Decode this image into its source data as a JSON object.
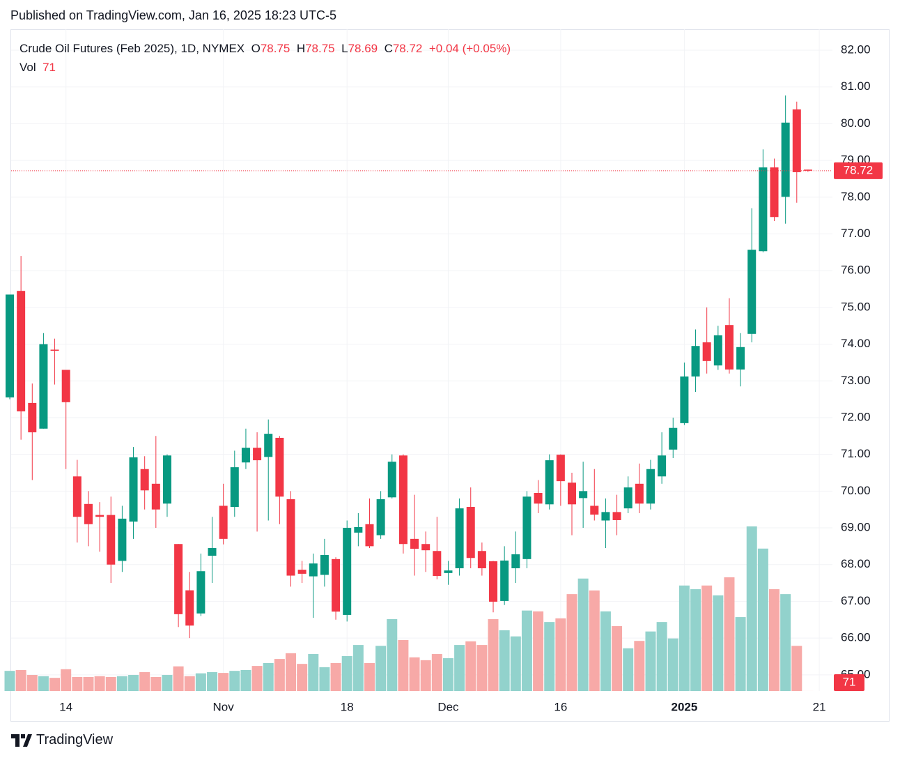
{
  "header": {
    "published": "Published on TradingView.com, Jan 16, 2025 18:23 UTC-5"
  },
  "chart_data": {
    "type": "candlestick",
    "title": "Crude Oil Futures (Feb 2025), 1D, NYMEX",
    "ohlc_labels": [
      "O",
      "H",
      "L",
      "C"
    ],
    "change": {
      "value": 0.04,
      "label": "+0.04"
    },
    "change_pct": {
      "value": 0.05,
      "label": "(+0.05%)"
    },
    "volume_label": "Vol",
    "categories": [
      null,
      null,
      null,
      null,
      null,
      "14",
      null,
      null,
      null,
      null,
      null,
      null,
      null,
      null,
      null,
      null,
      null,
      null,
      null,
      "Nov",
      null,
      null,
      null,
      null,
      null,
      null,
      null,
      null,
      null,
      null,
      "18",
      null,
      null,
      null,
      null,
      null,
      null,
      null,
      null,
      "Dec",
      null,
      null,
      null,
      null,
      null,
      null,
      null,
      null,
      null,
      "16",
      null,
      null,
      null,
      null,
      null,
      null,
      null,
      null,
      null,
      null,
      "2025",
      null,
      null,
      null,
      null,
      null,
      null,
      null,
      null,
      null,
      null,
      null,
      "21"
    ],
    "open": [
      72.55,
      75.45,
      72.4,
      71.7,
      73.85,
      73.3,
      70.4,
      69.65,
      69.35,
      69.35,
      68.1,
      69.17,
      70.6,
      70.2,
      69.66,
      68.56,
      67.3,
      66.67,
      68.24,
      69.6,
      69.57,
      70.78,
      71.18,
      70.93,
      71.45,
      69.78,
      67.86,
      67.68,
      67.72,
      68.15,
      66.63,
      68.87,
      69.1,
      68.8,
      69.83,
      70.97,
      68.7,
      68.56,
      68.37,
      67.77,
      67.9,
      69.57,
      68.37,
      68.09,
      67.01,
      67.9,
      68.15,
      69.95,
      69.64,
      70.99,
      70.23,
      69.81,
      69.6,
      69.2,
      69.43,
      69.53,
      70.2,
      69.66,
      70.4,
      71.13,
      71.85,
      73.12,
      74.05,
      73.42,
      74.52,
      73.31,
      74.28,
      76.53,
      78.81,
      78.01,
      80.39,
      78.75,
      null
    ],
    "high": [
      75.35,
      76.4,
      72.93,
      74.3,
      74.15,
      73.3,
      70.85,
      70.0,
      69.7,
      69.85,
      69.6,
      71.2,
      70.95,
      71.5,
      71.0,
      68.56,
      67.8,
      68.3,
      69.3,
      70.2,
      71.1,
      71.7,
      71.6,
      71.95,
      71.5,
      70.0,
      68.1,
      68.3,
      68.7,
      68.2,
      69.2,
      69.4,
      69.8,
      70.0,
      71.0,
      71.0,
      69.9,
      68.9,
      69.3,
      68.1,
      69.8,
      70.1,
      68.6,
      68.1,
      68.5,
      68.9,
      70.0,
      70.3,
      71.0,
      71.0,
      70.5,
      70.8,
      70.6,
      69.8,
      69.9,
      70.4,
      70.75,
      70.85,
      71.6,
      72.0,
      73.5,
      74.4,
      75.0,
      74.5,
      75.25,
      74.3,
      77.7,
      79.3,
      79.05,
      80.77,
      80.6,
      78.75,
      null
    ],
    "low": [
      72.5,
      71.4,
      70.3,
      71.7,
      72.9,
      70.6,
      68.6,
      68.5,
      68.35,
      67.5,
      67.8,
      68.7,
      69.5,
      69.0,
      69.3,
      66.3,
      66.0,
      66.6,
      67.5,
      68.55,
      69.3,
      70.6,
      68.9,
      69.2,
      69.1,
      67.4,
      67.5,
      66.55,
      67.4,
      66.5,
      66.45,
      68.5,
      68.45,
      68.7,
      69.8,
      68.3,
      67.7,
      67.8,
      67.6,
      67.45,
      67.7,
      67.9,
      67.7,
      66.7,
      66.9,
      67.5,
      67.9,
      69.4,
      69.5,
      69.6,
      68.8,
      69.0,
      69.2,
      68.45,
      68.8,
      69.4,
      69.4,
      69.5,
      70.2,
      70.9,
      71.8,
      72.7,
      73.2,
      73.3,
      73.2,
      72.85,
      74.05,
      76.5,
      77.35,
      77.28,
      77.85,
      78.69,
      null
    ],
    "close": [
      75.35,
      72.17,
      71.6,
      74.0,
      73.82,
      72.42,
      69.3,
      69.1,
      69.3,
      68.0,
      69.25,
      70.92,
      70.02,
      69.5,
      70.97,
      66.65,
      66.34,
      67.82,
      68.45,
      68.7,
      70.65,
      71.18,
      70.84,
      71.56,
      69.85,
      67.7,
      67.75,
      68.03,
      68.26,
      66.72,
      69.0,
      69.02,
      68.5,
      69.78,
      70.8,
      68.56,
      68.43,
      68.39,
      67.69,
      67.84,
      69.53,
      68.18,
      67.9,
      66.99,
      68.11,
      68.28,
      69.85,
      69.66,
      70.84,
      70.27,
      69.64,
      70.0,
      69.36,
      69.43,
      69.21,
      70.1,
      69.66,
      70.6,
      70.97,
      71.72,
      73.12,
      73.95,
      73.54,
      74.24,
      73.31,
      73.92,
      76.57,
      78.81,
      77.46,
      80.03,
      78.68,
      78.72,
      null
    ],
    "volume": [
      49000,
      51000,
      39000,
      36000,
      32000,
      53000,
      34000,
      34000,
      36000,
      34000,
      36000,
      39000,
      46000,
      34000,
      39000,
      60000,
      36000,
      43000,
      46000,
      44000,
      49000,
      51000,
      61000,
      68000,
      78000,
      92000,
      66000,
      90000,
      58000,
      68000,
      85000,
      112000,
      68000,
      110000,
      175000,
      124000,
      82000,
      75000,
      90000,
      80000,
      112000,
      121000,
      112000,
      175000,
      148000,
      133000,
      196000,
      194000,
      168000,
      177000,
      236000,
      274000,
      245000,
      194000,
      158000,
      104000,
      122000,
      145000,
      168000,
      128000,
      257000,
      248000,
      257000,
      233000,
      277000,
      180000,
      401000,
      347000,
      248000,
      236000,
      110000,
      71,
      null
    ],
    "up_color": "#089981",
    "down_color": "#f23645",
    "volume_up_color": "#92d2cc",
    "volume_down_color": "#f7a9a7",
    "ylim": [
      64.56,
      82.57
    ],
    "yticks": [
      {
        "value": 65,
        "label": "65.00"
      },
      {
        "value": 66,
        "label": "66.00"
      },
      {
        "value": 67,
        "label": "67.00"
      },
      {
        "value": 68,
        "label": "68.00"
      },
      {
        "value": 69,
        "label": "69.00"
      },
      {
        "value": 70,
        "label": "70.00"
      },
      {
        "value": 71,
        "label": "71.00"
      },
      {
        "value": 72,
        "label": "72.00"
      },
      {
        "value": 73,
        "label": "73.00"
      },
      {
        "value": 74,
        "label": "74.00"
      },
      {
        "value": 75,
        "label": "75.00"
      },
      {
        "value": 76,
        "label": "76.00"
      },
      {
        "value": 77,
        "label": "77.00"
      },
      {
        "value": 78,
        "label": "78.00"
      },
      {
        "value": 79,
        "label": "79.00"
      },
      {
        "value": 80,
        "label": "80.00"
      },
      {
        "value": 81,
        "label": "81.00"
      },
      {
        "value": 82,
        "label": "82.00"
      }
    ],
    "grid": true
  },
  "footer": {
    "brand": "TradingView"
  }
}
